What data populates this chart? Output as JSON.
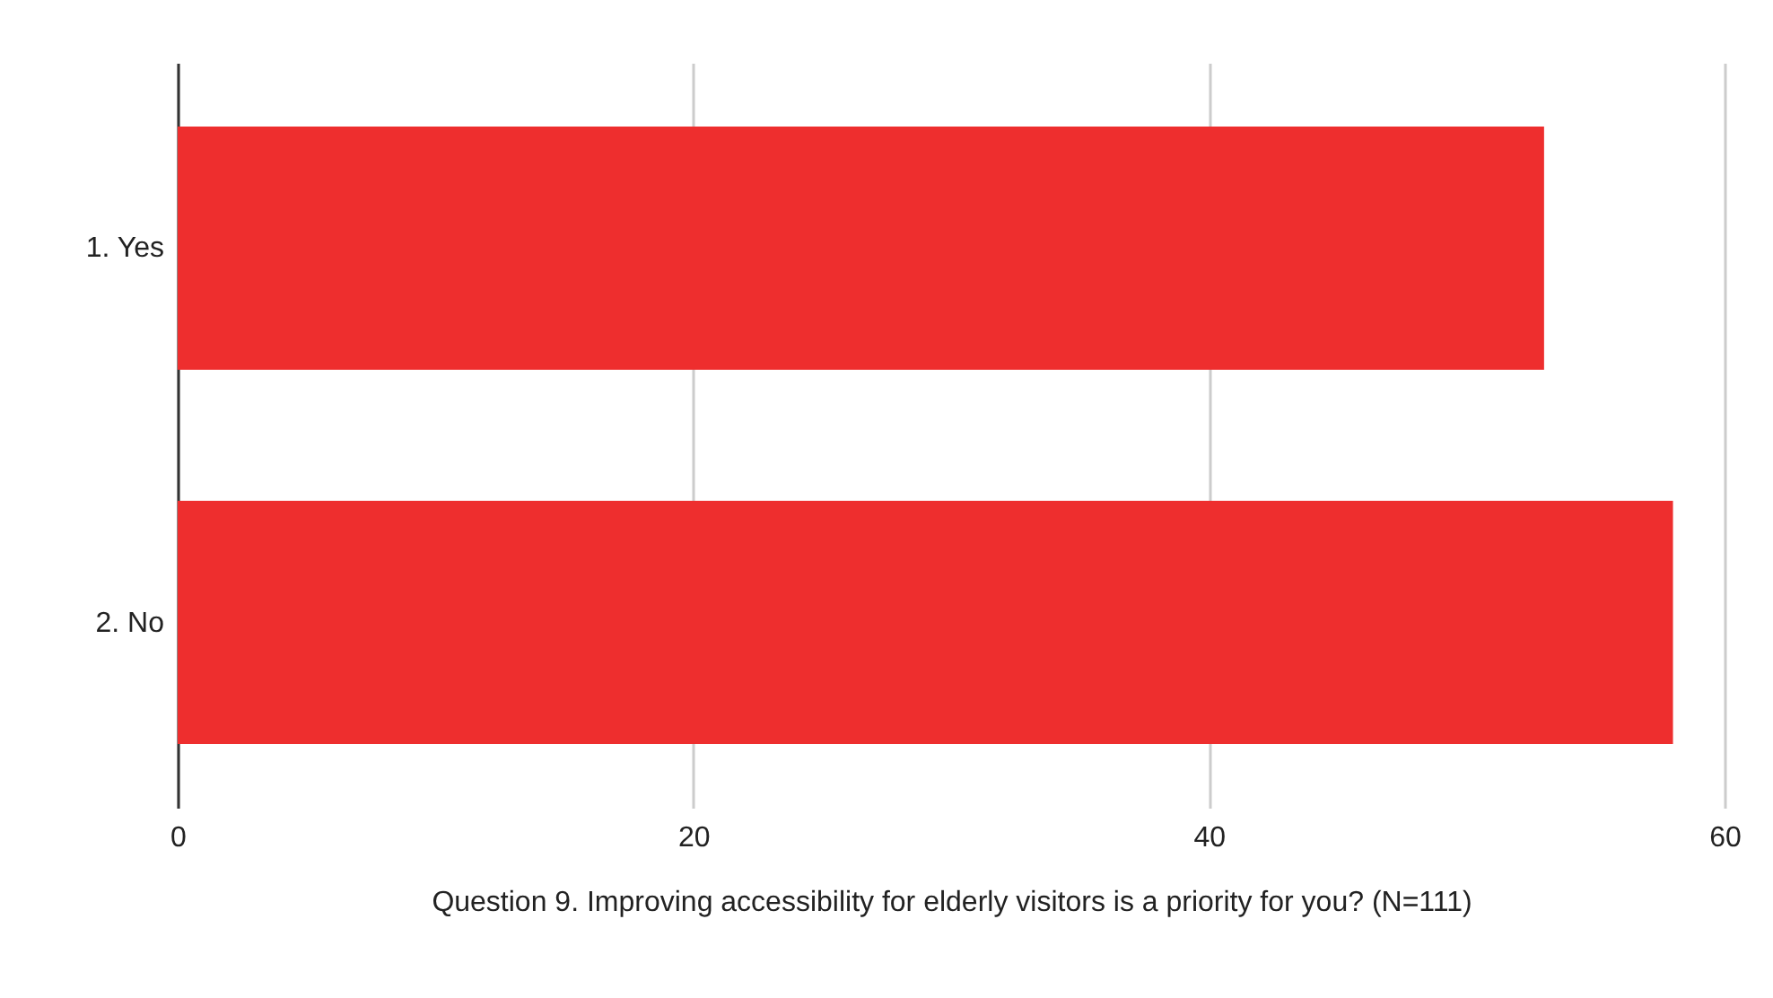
{
  "chart_data": {
    "type": "bar",
    "orientation": "horizontal",
    "categories": [
      "1. Yes",
      "2. No"
    ],
    "values": [
      53,
      58
    ],
    "color": "#ee2e2e",
    "xlim": [
      0,
      60
    ],
    "xticks": [
      0,
      20,
      40,
      60
    ],
    "grid": "x",
    "xlabel": "Question 9. Improving accessibility for elderly visitors is a priority for you? (N=111)"
  }
}
